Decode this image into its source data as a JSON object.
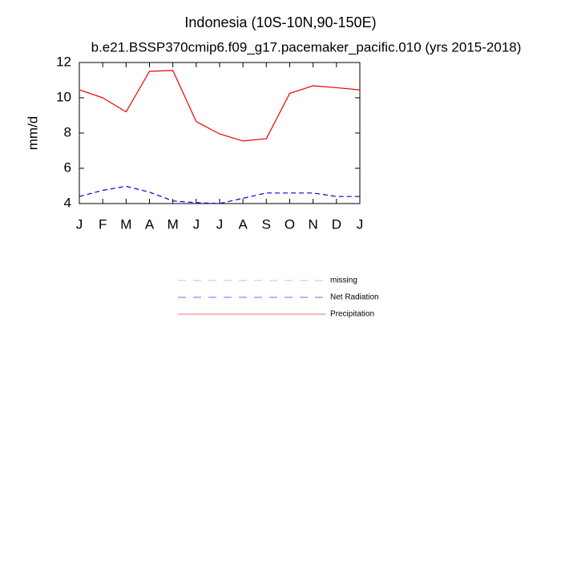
{
  "chart_data": {
    "type": "line",
    "title": "Indonesia (10S-10N,90-150E)",
    "subtitle": "b.e21.BSSP370cmip6.f09_g17.pacemaker_pacific.010 (yrs 2015-2018)",
    "y_label": "mm/d",
    "categories": [
      "J",
      "F",
      "M",
      "A",
      "M",
      "J",
      "J",
      "A",
      "S",
      "O",
      "N",
      "D",
      "J"
    ],
    "ylim": [
      4,
      12
    ],
    "yticks": [
      4,
      6,
      8,
      10,
      12
    ],
    "series": [
      {
        "name": "missing",
        "color": "#999999",
        "dash": true,
        "values": [
          null,
          null,
          null,
          null,
          null,
          null,
          null,
          null,
          null,
          null,
          null,
          null,
          null
        ]
      },
      {
        "name": "Net Radiation",
        "color": "#0000dd",
        "dash": true,
        "values": [
          4.4,
          4.75,
          4.98,
          4.65,
          4.15,
          4.05,
          4.0,
          4.3,
          4.6,
          4.6,
          4.6,
          4.4,
          4.4
        ]
      },
      {
        "name": "Precipitation",
        "color": "#ee0000",
        "dash": false,
        "values": [
          10.45,
          10.0,
          9.2,
          11.5,
          11.55,
          8.65,
          7.95,
          7.55,
          7.68,
          10.25,
          10.68,
          10.57,
          10.45
        ]
      }
    ]
  }
}
